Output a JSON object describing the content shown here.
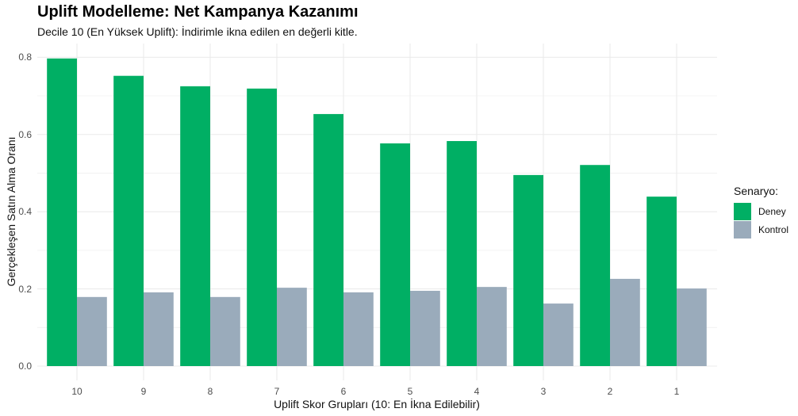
{
  "chart_data": {
    "type": "bar",
    "title": "Uplift Modelleme: Net Kampanya Kazanımı",
    "subtitle": "Decile 10 (En Yüksek Uplift): İndirimle ikna edilen en değerli kitle.",
    "xlabel": "Uplift Skor Grupları (10: En İkna Edilebilir)",
    "ylabel": "Gerçekleşen Satın Alma Oranı",
    "categories": [
      "10",
      "9",
      "8",
      "7",
      "6",
      "5",
      "4",
      "3",
      "2",
      "1"
    ],
    "series": [
      {
        "name": "Deney",
        "color": "#00AF64",
        "values": [
          0.797,
          0.752,
          0.725,
          0.719,
          0.653,
          0.577,
          0.583,
          0.495,
          0.521,
          0.439
        ]
      },
      {
        "name": "Kontrol",
        "color": "#9AABBB",
        "values": [
          0.179,
          0.191,
          0.179,
          0.203,
          0.191,
          0.195,
          0.205,
          0.162,
          0.226,
          0.201
        ]
      }
    ],
    "ylim": [
      0,
      0.82
    ],
    "yticks": [
      "0.0",
      "0.2",
      "0.4",
      "0.6",
      "0.8"
    ],
    "ytick_values": [
      0,
      0.2,
      0.4,
      0.6,
      0.8
    ],
    "grid": true,
    "legend": {
      "title": "Senaryo:",
      "position": "right",
      "entries": [
        "Deney",
        "Kontrol"
      ]
    }
  },
  "header": {
    "title": "Uplift Modelleme: Net Kampanya Kazanımı",
    "subtitle": "Decile 10 (En Yüksek Uplift): İndirimle ikna edilen en değerli kitle."
  },
  "axes": {
    "xlabel": "Uplift Skor Grupları (10: En İkna Edilebilir)",
    "ylabel": "Gerçekleşen Satın Alma Oranı"
  },
  "legend": {
    "title": "Senaryo:",
    "items": [
      {
        "label": "Deney",
        "color": "#00AF64"
      },
      {
        "label": "Kontrol",
        "color": "#9AABBB"
      }
    ]
  }
}
